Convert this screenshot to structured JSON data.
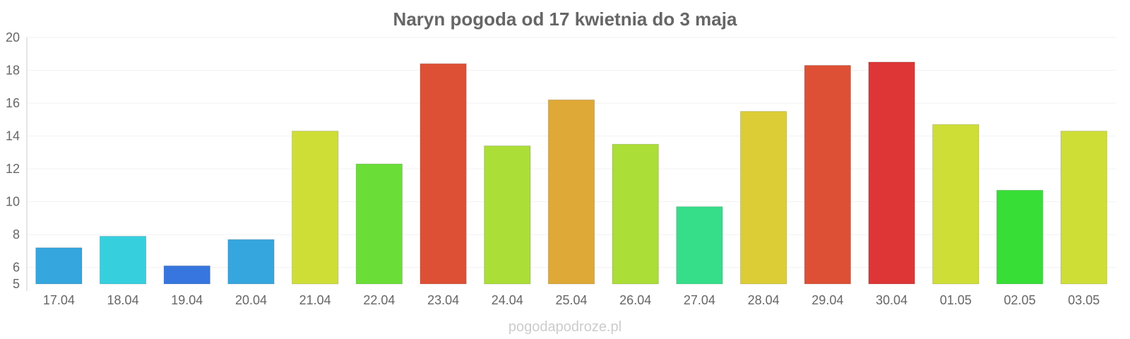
{
  "chart_data": {
    "type": "bar",
    "title": "Naryn pogoda od 17 kwietnia do 3 maja",
    "xlabel": "",
    "ylabel": "",
    "ylim": [
      5,
      20
    ],
    "yticks": [
      5,
      6,
      8,
      10,
      12,
      14,
      16,
      18,
      20
    ],
    "grid": true,
    "categories": [
      "17.04",
      "18.04",
      "19.04",
      "20.04",
      "21.04",
      "22.04",
      "23.04",
      "24.04",
      "25.04",
      "26.04",
      "27.04",
      "28.04",
      "29.04",
      "30.04",
      "01.05",
      "02.05",
      "03.05"
    ],
    "values": [
      7.2,
      7.9,
      6.1,
      7.7,
      14.3,
      12.3,
      18.4,
      13.4,
      16.2,
      13.5,
      9.7,
      15.5,
      18.3,
      18.5,
      14.7,
      10.7,
      14.3
    ],
    "colors": [
      "#36a6de",
      "#36cfde",
      "#3676de",
      "#36a6de",
      "#cfde36",
      "#6ade36",
      "#de5036",
      "#abde36",
      "#dea936",
      "#abde36",
      "#36de8a",
      "#dccd36",
      "#de5036",
      "#de3636",
      "#cfde36",
      "#36de36",
      "#cfde36"
    ]
  },
  "footer": {
    "source": "pogodapodroze.pl"
  }
}
